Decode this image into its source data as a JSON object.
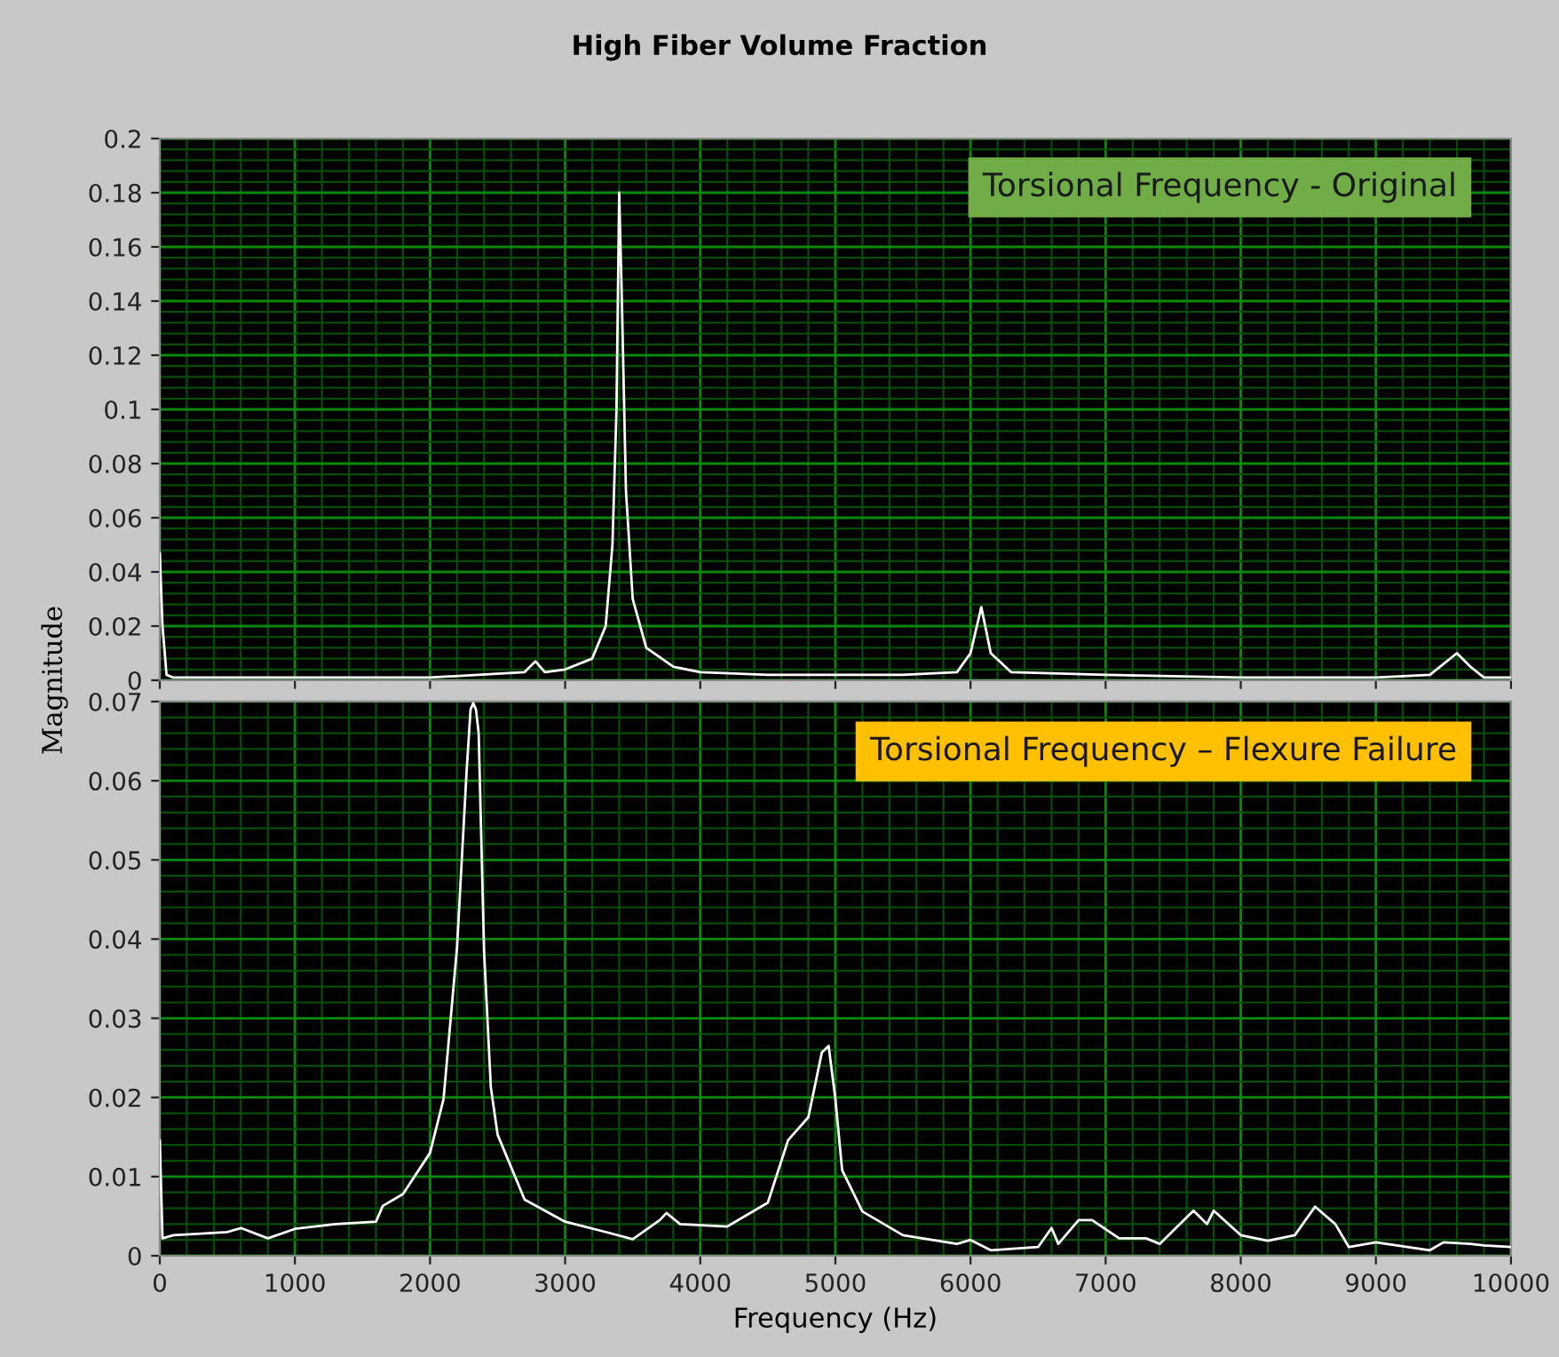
{
  "chart_data": [
    {
      "type": "line",
      "title": "High Fiber Volume Fraction",
      "ylabel": "Magnitude",
      "annotations": [
        "Torsional Frequency - Original"
      ],
      "xlim": [
        0,
        10000
      ],
      "xticks": [
        0,
        {
          "value": 200,
          "label": null
        },
        {
          "value": 400,
          "label": null
        },
        {
          "value": 600,
          "label": null
        },
        {
          "value": 800,
          "label": null
        },
        1000,
        {
          "value": 1200,
          "label": null
        },
        {
          "value": 1400,
          "label": null
        },
        {
          "value": 1600,
          "label": null
        },
        {
          "value": 1800,
          "label": null
        },
        2000,
        {
          "value": 2200,
          "label": null
        },
        {
          "value": 2400,
          "label": null
        },
        {
          "value": 2600,
          "label": null
        },
        {
          "value": 2800,
          "label": null
        },
        3000,
        {
          "value": 3200,
          "label": null
        },
        {
          "value": 3400,
          "label": null
        },
        {
          "value": 3600,
          "label": null
        },
        {
          "value": 3800,
          "label": null
        },
        4000,
        {
          "value": 4200,
          "label": null
        },
        {
          "value": 4400,
          "label": null
        },
        {
          "value": 4600,
          "label": null
        },
        {
          "value": 4800,
          "label": null
        },
        5000,
        {
          "value": 5200,
          "label": null
        },
        {
          "value": 5400,
          "label": null
        },
        {
          "value": 5600,
          "label": null
        },
        {
          "value": 5800,
          "label": null
        },
        6000,
        {
          "value": 6200,
          "label": null
        },
        {
          "value": 6400,
          "label": null
        },
        {
          "value": 6600,
          "label": null
        },
        {
          "value": 6800,
          "label": null
        },
        7000,
        {
          "value": 7200,
          "label": null
        },
        {
          "value": 7400,
          "label": null
        },
        {
          "value": 7600,
          "label": null
        },
        {
          "value": 7800,
          "label": null
        },
        8000,
        {
          "value": 8200,
          "label": null
        },
        {
          "value": 8400,
          "label": null
        },
        {
          "value": 8600,
          "label": null
        },
        {
          "value": 8800,
          "label": null
        },
        9000,
        {
          "value": 9200,
          "label": null
        },
        {
          "value": 9400,
          "label": null
        },
        {
          "value": 9600,
          "label": null
        },
        {
          "value": 9800,
          "label": null
        },
        10000
      ],
      "ylim": [
        0,
        0.2
      ],
      "yticks": [
        0,
        {
          "value": 0.004,
          "label": null
        },
        {
          "value": 0.008,
          "label": null
        },
        {
          "value": 0.012,
          "label": null
        },
        {
          "value": 0.016,
          "label": null
        },
        0.02,
        {
          "value": 0.024,
          "label": null
        },
        {
          "value": 0.028,
          "label": null
        },
        {
          "value": 0.032,
          "label": null
        },
        {
          "value": 0.036,
          "label": null
        },
        0.04,
        {
          "value": 0.044,
          "label": null
        },
        {
          "value": 0.048,
          "label": null
        },
        {
          "value": 0.052,
          "label": null
        },
        {
          "value": 0.056,
          "label": null
        },
        0.06,
        {
          "value": 0.064,
          "label": null
        },
        {
          "value": 0.068,
          "label": null
        },
        {
          "value": 0.072,
          "label": null
        },
        {
          "value": 0.076,
          "label": null
        },
        0.08,
        {
          "value": 0.084,
          "label": null
        },
        {
          "value": 0.088,
          "label": null
        },
        {
          "value": 0.092,
          "label": null
        },
        {
          "value": 0.096,
          "label": null
        },
        0.1,
        {
          "value": 0.104,
          "label": null
        },
        {
          "value": 0.108,
          "label": null
        },
        {
          "value": 0.112,
          "label": null
        },
        {
          "value": 0.116,
          "label": null
        },
        0.12,
        {
          "value": 0.124,
          "label": null
        },
        {
          "value": 0.128,
          "label": null
        },
        {
          "value": 0.132,
          "label": null
        },
        {
          "value": 0.136,
          "label": null
        },
        0.14,
        {
          "value": 0.144,
          "label": null
        },
        {
          "value": 0.148,
          "label": null
        },
        {
          "value": 0.152,
          "label": null
        },
        {
          "value": 0.156,
          "label": null
        },
        0.16,
        {
          "value": 0.164,
          "label": null
        },
        {
          "value": 0.168,
          "label": null
        },
        {
          "value": 0.172,
          "label": null
        },
        {
          "value": 0.176,
          "label": null
        },
        0.18,
        {
          "value": 0.184,
          "label": null
        },
        {
          "value": 0.188,
          "label": null
        },
        {
          "value": 0.192,
          "label": null
        },
        {
          "value": 0.196,
          "label": null
        },
        0.2
      ],
      "tick_labels": "y",
      "grid": true,
      "series": [
        {
          "color": "#ffffff",
          "x": [
            0,
            20,
            50,
            100,
            1000,
            2000,
            2700,
            2780,
            2850,
            3000,
            3200,
            3300,
            3350,
            3380,
            3400,
            3420,
            3450,
            3500,
            3600,
            3800,
            4000,
            4500,
            5000,
            5500,
            5900,
            6000,
            6080,
            6150,
            6300,
            7000,
            8000,
            9000,
            9400,
            9600,
            9700,
            9800,
            10000
          ],
          "values": [
            0.047,
            0.02,
            0.002,
            0.001,
            0.001,
            0.001,
            0.003,
            0.007,
            0.003,
            0.004,
            0.008,
            0.02,
            0.05,
            0.1,
            0.18,
            0.14,
            0.07,
            0.03,
            0.012,
            0.005,
            0.003,
            0.002,
            0.002,
            0.002,
            0.003,
            0.01,
            0.027,
            0.01,
            0.003,
            0.002,
            0.001,
            0.001,
            0.002,
            0.01,
            0.005,
            0.001,
            0.001
          ]
        }
      ]
    },
    {
      "type": "line",
      "xlabel": "Frequency (Hz)",
      "annotations": [
        "Torsional Frequency – Flexure Failure"
      ],
      "xlim": [
        0,
        10000
      ],
      "xticks": [
        0,
        {
          "value": 200,
          "label": null
        },
        {
          "value": 400,
          "label": null
        },
        {
          "value": 600,
          "label": null
        },
        {
          "value": 800,
          "label": null
        },
        1000,
        {
          "value": 1200,
          "label": null
        },
        {
          "value": 1400,
          "label": null
        },
        {
          "value": 1600,
          "label": null
        },
        {
          "value": 1800,
          "label": null
        },
        2000,
        {
          "value": 2200,
          "label": null
        },
        {
          "value": 2400,
          "label": null
        },
        {
          "value": 2600,
          "label": null
        },
        {
          "value": 2800,
          "label": null
        },
        3000,
        {
          "value": 3200,
          "label": null
        },
        {
          "value": 3400,
          "label": null
        },
        {
          "value": 3600,
          "label": null
        },
        {
          "value": 3800,
          "label": null
        },
        4000,
        {
          "value": 4200,
          "label": null
        },
        {
          "value": 4400,
          "label": null
        },
        {
          "value": 4600,
          "label": null
        },
        {
          "value": 4800,
          "label": null
        },
        5000,
        {
          "value": 5200,
          "label": null
        },
        {
          "value": 5400,
          "label": null
        },
        {
          "value": 5600,
          "label": null
        },
        {
          "value": 5800,
          "label": null
        },
        6000,
        {
          "value": 6200,
          "label": null
        },
        {
          "value": 6400,
          "label": null
        },
        {
          "value": 6600,
          "label": null
        },
        {
          "value": 6800,
          "label": null
        },
        7000,
        {
          "value": 7200,
          "label": null
        },
        {
          "value": 7400,
          "label": null
        },
        {
          "value": 7600,
          "label": null
        },
        {
          "value": 7800,
          "label": null
        },
        8000,
        {
          "value": 8200,
          "label": null
        },
        {
          "value": 8400,
          "label": null
        },
        {
          "value": 8600,
          "label": null
        },
        {
          "value": 8800,
          "label": null
        },
        9000,
        {
          "value": 9200,
          "label": null
        },
        {
          "value": 9400,
          "label": null
        },
        {
          "value": 9600,
          "label": null
        },
        {
          "value": 9800,
          "label": null
        },
        10000
      ],
      "ylim": [
        0,
        0.07
      ],
      "yticks": [
        0,
        {
          "value": 0.002,
          "label": null
        },
        {
          "value": 0.004,
          "label": null
        },
        {
          "value": 0.006,
          "label": null
        },
        {
          "value": 0.008,
          "label": null
        },
        0.01,
        {
          "value": 0.012,
          "label": null
        },
        {
          "value": 0.014,
          "label": null
        },
        {
          "value": 0.016,
          "label": null
        },
        {
          "value": 0.018,
          "label": null
        },
        0.02,
        {
          "value": 0.022,
          "label": null
        },
        {
          "value": 0.024,
          "label": null
        },
        {
          "value": 0.026,
          "label": null
        },
        {
          "value": 0.028,
          "label": null
        },
        0.03,
        {
          "value": 0.032,
          "label": null
        },
        {
          "value": 0.034,
          "label": null
        },
        {
          "value": 0.036,
          "label": null
        },
        {
          "value": 0.038,
          "label": null
        },
        0.04,
        {
          "value": 0.042,
          "label": null
        },
        {
          "value": 0.044,
          "label": null
        },
        {
          "value": 0.046,
          "label": null
        },
        {
          "value": 0.048,
          "label": null
        },
        0.05,
        {
          "value": 0.052,
          "label": null
        },
        {
          "value": 0.054,
          "label": null
        },
        {
          "value": 0.056,
          "label": null
        },
        {
          "value": 0.058,
          "label": null
        },
        0.06,
        {
          "value": 0.062,
          "label": null
        },
        {
          "value": 0.064,
          "label": null
        },
        {
          "value": 0.066,
          "label": null
        },
        {
          "value": 0.068,
          "label": null
        },
        0.07
      ],
      "grid": true,
      "series": [
        {
          "color": "#ffffff",
          "x": [
            0,
            20,
            100,
            500,
            600,
            800,
            1000,
            1300,
            1600,
            1650,
            1800,
            2000,
            2100,
            2200,
            2270,
            2300,
            2320,
            2340,
            2360,
            2400,
            2450,
            2500,
            2700,
            3000,
            3300,
            3500,
            3700,
            3750,
            3850,
            4200,
            4500,
            4650,
            4800,
            4900,
            4950,
            5000,
            5050,
            5200,
            5500,
            5900,
            6000,
            6150,
            6500,
            6600,
            6650,
            6800,
            6900,
            7100,
            7300,
            7400,
            7650,
            7750,
            7800,
            8000,
            8200,
            8400,
            8550,
            8700,
            8800,
            9000,
            9400,
            9500,
            9700,
            9800,
            10000
          ],
          "values": [
            0.0146,
            0.0022,
            0.0026,
            0.003,
            0.0035,
            0.0022,
            0.0034,
            0.004,
            0.0043,
            0.0063,
            0.0078,
            0.013,
            0.0198,
            0.039,
            0.061,
            0.069,
            0.0698,
            0.069,
            0.066,
            0.0384,
            0.0213,
            0.0153,
            0.0071,
            0.0043,
            0.003,
            0.0021,
            0.0045,
            0.0054,
            0.004,
            0.0037,
            0.0067,
            0.0146,
            0.0175,
            0.0257,
            0.0265,
            0.0198,
            0.0108,
            0.0056,
            0.0026,
            0.0015,
            0.002,
            0.0007,
            0.0011,
            0.0035,
            0.0015,
            0.0045,
            0.0045,
            0.0022,
            0.0022,
            0.0015,
            0.0057,
            0.004,
            0.0057,
            0.0026,
            0.0019,
            0.0026,
            0.0062,
            0.004,
            0.0011,
            0.0017,
            0.0007,
            0.0017,
            0.0015,
            0.0013,
            0.0011
          ]
        }
      ]
    }
  ]
}
